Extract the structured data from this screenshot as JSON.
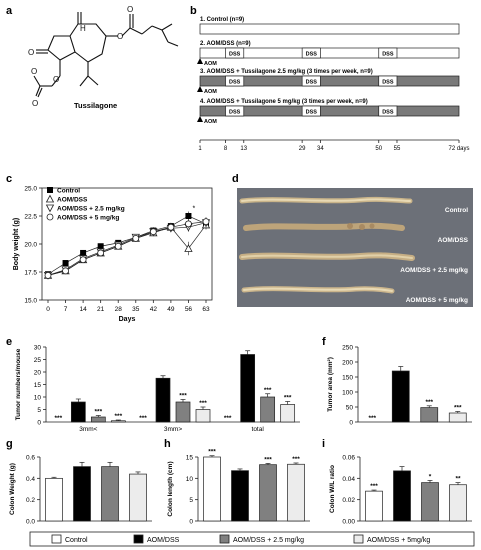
{
  "panels": {
    "a": {
      "letter": "a",
      "compound_name": "Tussilagone"
    },
    "b": {
      "letter": "b",
      "groups": [
        {
          "label": "1. Control (n=9)",
          "tussilagone": false,
          "aom": false
        },
        {
          "label": "2. AOM/DSS (n=9)",
          "tussilagone": false,
          "aom": true
        },
        {
          "label": "3. AOM/DSS + Tussilagone 2.5 mg/kg (3 times per week, n=9)",
          "tussilagone": true,
          "aom": true
        },
        {
          "label": "4. AOM/DSS + Tussilagone 5 mg/kg (3 times per week, n=9)",
          "tussilagone": true,
          "aom": true
        }
      ],
      "dss_label": "DSS",
      "aom_label": "AOM",
      "dss_periods": [
        [
          8,
          13
        ],
        [
          29,
          34
        ],
        [
          50,
          55
        ]
      ],
      "timeline_end": 72,
      "timepoints": [
        "1",
        "8",
        "13",
        "29",
        "34",
        "50",
        "55",
        "72 days"
      ],
      "timepoint_values": [
        1,
        8,
        13,
        29,
        34,
        50,
        55,
        72
      ]
    },
    "c": {
      "letter": "c",
      "legend": [
        "Control",
        "AOM/DSS",
        "AOM/DSS + 2.5 mg/kg",
        "AOM/DSS + 5 mg/kg"
      ]
    },
    "d": {
      "letter": "d",
      "labels": [
        "Control",
        "AOM/DSS",
        "AOM/DSS + 2.5 mg/kg",
        "AOM/DSS + 5 mg/kg"
      ]
    },
    "e": {
      "letter": "e"
    },
    "f": {
      "letter": "f"
    },
    "g": {
      "letter": "g"
    },
    "h": {
      "letter": "h"
    },
    "i": {
      "letter": "i"
    }
  },
  "legend_bottom": [
    "Control",
    "AOM/DSS",
    "AOM/DSS + 2.5 mg/kg",
    "AOM/DSS + 5mg/kg"
  ],
  "colors": {
    "control": "#ffffff",
    "aomdss": "#000000",
    "t25": "#808080",
    "t5": "#ececec",
    "tussilagone_bar": "#7a7a7a",
    "colon_bg": "#6c7078"
  },
  "chart_data": [
    {
      "id": "c",
      "type": "line",
      "xlabel": "Days",
      "ylabel": "Body weight (g)",
      "ylim": [
        15.0,
        25.0
      ],
      "yticks": [
        15.0,
        17.5,
        20.0,
        22.5,
        25.0
      ],
      "ytick_labels": [
        "15.0",
        "17.5",
        "20.0",
        "22.5",
        "25.0"
      ],
      "xticks": [
        0,
        7,
        14,
        21,
        28,
        35,
        42,
        49,
        56,
        63
      ],
      "xtick_labels": [
        "0",
        "7",
        "14",
        "21",
        "28",
        "35",
        "42",
        "49",
        "56",
        "63"
      ],
      "x": [
        0,
        7,
        14,
        21,
        28,
        35,
        42,
        49,
        56,
        63
      ],
      "series": [
        {
          "name": "Control",
          "values": [
            17.3,
            18.3,
            19.2,
            19.8,
            20.1,
            20.6,
            21.2,
            21.6,
            22.5,
            21.8
          ],
          "err": [
            0.2,
            0.2,
            0.2,
            0.2,
            0.2,
            0.2,
            0.3,
            0.3,
            0.4,
            0.4
          ]
        },
        {
          "name": "AOM/DSS",
          "values": [
            17.2,
            17.6,
            18.6,
            19.2,
            19.8,
            20.5,
            21.0,
            21.5,
            19.6,
            21.7
          ],
          "err": [
            0.2,
            0.2,
            0.2,
            0.2,
            0.2,
            0.2,
            0.3,
            0.3,
            0.6,
            0.4
          ]
        },
        {
          "name": "AOM/DSS + 2.5 mg/kg",
          "values": [
            17.2,
            17.7,
            18.7,
            19.3,
            19.9,
            20.6,
            21.1,
            21.4,
            21.5,
            21.9
          ],
          "err": [
            0.2,
            0.2,
            0.2,
            0.2,
            0.2,
            0.2,
            0.3,
            0.3,
            0.4,
            0.4
          ]
        },
        {
          "name": "AOM/DSS + 5 mg/kg",
          "values": [
            17.2,
            17.6,
            18.6,
            19.2,
            19.8,
            20.5,
            21.1,
            21.5,
            21.8,
            22.0
          ],
          "err": [
            0.2,
            0.2,
            0.2,
            0.2,
            0.2,
            0.2,
            0.3,
            0.3,
            0.4,
            0.4
          ]
        }
      ],
      "annotations": [
        "*"
      ]
    },
    {
      "id": "e",
      "type": "bar",
      "ylabel": "Tumor numbers/mouse",
      "ylim": [
        0,
        30
      ],
      "yticks": [
        0,
        5,
        10,
        15,
        20,
        25,
        30
      ],
      "ytick_labels": [
        "0",
        "5",
        "10",
        "15",
        "20",
        "25",
        "30"
      ],
      "categories": [
        "3mm<",
        "3mm>",
        "total"
      ],
      "series": [
        {
          "name": "Control",
          "values": [
            0,
            0,
            0
          ],
          "err": [
            0,
            0,
            0
          ],
          "sig": [
            "***",
            "***",
            "***"
          ]
        },
        {
          "name": "AOM/DSS",
          "values": [
            8.0,
            17.5,
            27.0
          ],
          "err": [
            1.2,
            1.0,
            1.5
          ],
          "sig": [
            "",
            "",
            ""
          ]
        },
        {
          "name": "AOM/DSS + 2.5 mg/kg",
          "values": [
            2.0,
            8.0,
            10.0
          ],
          "err": [
            0.6,
            1.0,
            1.3
          ],
          "sig": [
            "***",
            "***",
            "***"
          ]
        },
        {
          "name": "AOM/DSS + 5 mg/kg",
          "values": [
            0.5,
            5.0,
            7.0
          ],
          "err": [
            0.3,
            1.0,
            1.2
          ],
          "sig": [
            "***",
            "***",
            "***"
          ]
        }
      ]
    },
    {
      "id": "f",
      "type": "bar",
      "ylabel": "Tumor area (mm²)",
      "ylim": [
        0,
        250
      ],
      "yticks": [
        0,
        50,
        100,
        150,
        200,
        250
      ],
      "ytick_labels": [
        "0",
        "50",
        "100",
        "150",
        "200",
        "250"
      ],
      "categories": [
        "Control",
        "AOM/DSS",
        "AOM/DSS + 2.5 mg/kg",
        "AOM/DSS + 5 mg/kg"
      ],
      "values": [
        0,
        170,
        48,
        30
      ],
      "err": [
        0,
        15,
        6,
        5
      ],
      "sig": [
        "***",
        "",
        "***",
        "***"
      ]
    },
    {
      "id": "g",
      "type": "bar",
      "ylabel": "Colon Weight (g)",
      "ylim": [
        0.0,
        0.6
      ],
      "yticks": [
        0.0,
        0.2,
        0.4,
        0.6
      ],
      "ytick_labels": [
        "0.0",
        "0.2",
        "0.4",
        "0.6"
      ],
      "categories": [
        "Control",
        "AOM/DSS",
        "AOM/DSS + 2.5 mg/kg",
        "AOM/DSS + 5mg/kg"
      ],
      "values": [
        0.4,
        0.51,
        0.51,
        0.44
      ],
      "err": [
        0.01,
        0.04,
        0.04,
        0.02
      ],
      "sig": [
        "",
        "",
        "",
        ""
      ]
    },
    {
      "id": "h",
      "type": "bar",
      "ylabel": "Colon length (cm)",
      "ylim": [
        0,
        15
      ],
      "yticks": [
        0,
        5,
        10,
        15
      ],
      "ytick_labels": [
        "0",
        "5",
        "10",
        "15"
      ],
      "categories": [
        "Control",
        "AOM/DSS",
        "AOM/DSS + 2.5 mg/kg",
        "AOM/DSS + 5mg/kg"
      ],
      "values": [
        15.0,
        11.8,
        13.2,
        13.3
      ],
      "err": [
        0.3,
        0.4,
        0.3,
        0.3
      ],
      "sig": [
        "***",
        "",
        "***",
        "***"
      ]
    },
    {
      "id": "i",
      "type": "bar",
      "ylabel": "Colon W/L ratio",
      "ylim": [
        0.0,
        0.06
      ],
      "yticks": [
        0.0,
        0.02,
        0.04,
        0.06
      ],
      "ytick_labels": [
        "0.00",
        "0.02",
        "0.04",
        "0.06"
      ],
      "categories": [
        "Control",
        "AOM/DSS",
        "AOM/DSS + 2.5 mg/kg",
        "AOM/DSS + 5mg/kg"
      ],
      "values": [
        0.028,
        0.047,
        0.036,
        0.034
      ],
      "err": [
        0.001,
        0.004,
        0.002,
        0.002
      ],
      "sig": [
        "***",
        "",
        "*",
        "**"
      ]
    }
  ]
}
